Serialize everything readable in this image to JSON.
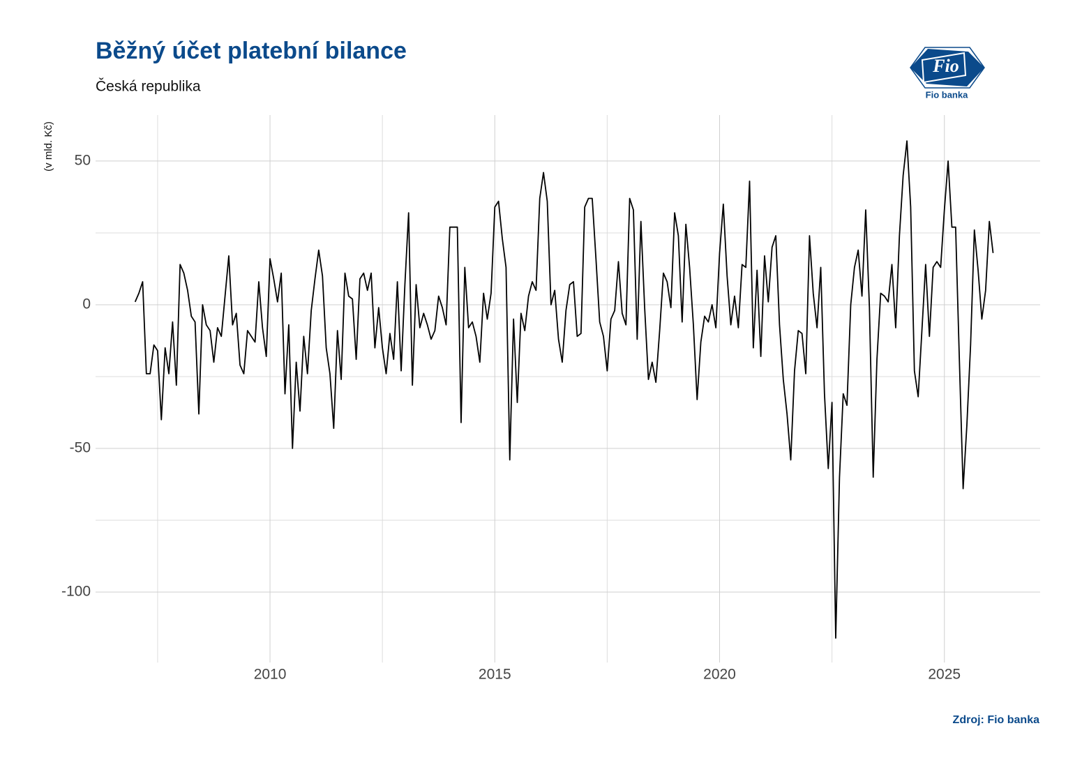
{
  "chart_data": {
    "type": "line",
    "title": "Běžný účet platební bilance",
    "subtitle": "Česká republika",
    "ylabel": "(v mld. Kč)",
    "source": "Zdroj: Fio banka",
    "logo_text": "Fio",
    "logo_caption": "Fio banka",
    "title_color": "#0b4a8b",
    "grid": true,
    "xlim": [
      2006.12,
      2027.13
    ],
    "ylim": [
      -124.5,
      66
    ],
    "xticks": [
      2010,
      2015,
      2020,
      2025
    ],
    "yticks": [
      -100,
      -50,
      0,
      50
    ],
    "minor_xticks": [
      2007.5,
      2012.5,
      2017.5,
      2022.5
    ],
    "minor_yticks": [
      -75,
      -25,
      25
    ],
    "x": [
      2007,
      2007.083,
      2007.167,
      2007.25,
      2007.333,
      2007.417,
      2007.5,
      2007.583,
      2007.667,
      2007.75,
      2007.833,
      2007.917,
      2008,
      2008.083,
      2008.167,
      2008.25,
      2008.333,
      2008.417,
      2008.5,
      2008.583,
      2008.667,
      2008.75,
      2008.833,
      2008.917,
      2009,
      2009.083,
      2009.167,
      2009.25,
      2009.333,
      2009.417,
      2009.5,
      2009.583,
      2009.667,
      2009.75,
      2009.833,
      2009.917,
      2010,
      2010.083,
      2010.167,
      2010.25,
      2010.333,
      2010.417,
      2010.5,
      2010.583,
      2010.667,
      2010.75,
      2010.833,
      2010.917,
      2011,
      2011.083,
      2011.167,
      2011.25,
      2011.333,
      2011.417,
      2011.5,
      2011.583,
      2011.667,
      2011.75,
      2011.833,
      2011.917,
      2012,
      2012.083,
      2012.167,
      2012.25,
      2012.333,
      2012.417,
      2012.5,
      2012.583,
      2012.667,
      2012.75,
      2012.833,
      2012.917,
      2013,
      2013.083,
      2013.167,
      2013.25,
      2013.333,
      2013.417,
      2013.5,
      2013.583,
      2013.667,
      2013.75,
      2013.833,
      2013.917,
      2014,
      2014.083,
      2014.167,
      2014.25,
      2014.333,
      2014.417,
      2014.5,
      2014.583,
      2014.667,
      2014.75,
      2014.833,
      2014.917,
      2015,
      2015.083,
      2015.167,
      2015.25,
      2015.333,
      2015.417,
      2015.5,
      2015.583,
      2015.667,
      2015.75,
      2015.833,
      2015.917,
      2016,
      2016.083,
      2016.167,
      2016.25,
      2016.333,
      2016.417,
      2016.5,
      2016.583,
      2016.667,
      2016.75,
      2016.833,
      2016.917,
      2017,
      2017.083,
      2017.167,
      2017.25,
      2017.333,
      2017.417,
      2017.5,
      2017.583,
      2017.667,
      2017.75,
      2017.833,
      2017.917,
      2018,
      2018.083,
      2018.167,
      2018.25,
      2018.333,
      2018.417,
      2018.5,
      2018.583,
      2018.667,
      2018.75,
      2018.833,
      2018.917,
      2019,
      2019.083,
      2019.167,
      2019.25,
      2019.333,
      2019.417,
      2019.5,
      2019.583,
      2019.667,
      2019.75,
      2019.833,
      2019.917,
      2020,
      2020.083,
      2020.167,
      2020.25,
      2020.333,
      2020.417,
      2020.5,
      2020.583,
      2020.667,
      2020.75,
      2020.833,
      2020.917,
      2021,
      2021.083,
      2021.167,
      2021.25,
      2021.333,
      2021.417,
      2021.5,
      2021.583,
      2021.667,
      2021.75,
      2021.833,
      2021.917,
      2022,
      2022.083,
      2022.167,
      2022.25,
      2022.333,
      2022.417,
      2022.5,
      2022.583,
      2022.667,
      2022.75,
      2022.833,
      2022.917,
      2023,
      2023.083,
      2023.167,
      2023.25,
      2023.333,
      2023.417,
      2023.5,
      2023.583,
      2023.667,
      2023.75,
      2023.833,
      2023.917,
      2024,
      2024.083,
      2024.167,
      2024.25,
      2024.333,
      2024.417,
      2024.5,
      2024.583,
      2024.667,
      2024.75,
      2024.833,
      2024.917,
      2025,
      2025.083,
      2025.167,
      2025.25,
      2025.333,
      2025.417,
      2025.5,
      2025.583,
      2025.667,
      2025.75,
      2025.833,
      2025.917,
      2026,
      2026.083
    ],
    "series": [
      {
        "color": "#000000",
        "values": [
          1,
          4,
          8,
          -24,
          -24,
          -14,
          -16,
          -40,
          -15,
          -24,
          -6,
          -28,
          14,
          11,
          5,
          -4,
          -6,
          -38,
          0,
          -7,
          -9,
          -20,
          -8,
          -11,
          3,
          17,
          -7,
          -3,
          -21,
          -24,
          -9,
          -11,
          -13,
          8,
          -8,
          -18,
          16,
          9,
          1,
          11,
          -31,
          -7,
          -50,
          -20,
          -37,
          -11,
          -24,
          -2,
          9,
          19,
          10,
          -15,
          -24,
          -43,
          -9,
          -26,
          11,
          3,
          2,
          -19,
          9,
          11,
          5,
          11,
          -15,
          -1,
          -15,
          -24,
          -10,
          -19,
          8,
          -23,
          7,
          32,
          -28,
          7,
          -8,
          -3,
          -7,
          -12,
          -9,
          3,
          -1,
          -7,
          27,
          27,
          27,
          -41,
          13,
          -8,
          -6,
          -11,
          -20,
          4,
          -5,
          4,
          34,
          36,
          23,
          13,
          -54,
          -5,
          -34,
          -3,
          -9,
          3,
          8,
          5,
          37,
          46,
          36,
          0,
          5,
          -12,
          -20,
          -2,
          7,
          8,
          -11,
          -10,
          34,
          37,
          37,
          16,
          -6,
          -11,
          -23,
          -5,
          -2,
          15,
          -3,
          -7,
          37,
          33,
          -12,
          29,
          -1,
          -26,
          -20,
          -27,
          -9,
          11,
          8,
          -1,
          32,
          24,
          -6,
          28,
          13,
          -7,
          -33,
          -13,
          -4,
          -6,
          0,
          -8,
          18,
          35,
          10,
          -7,
          3,
          -8,
          14,
          13,
          43,
          -15,
          12,
          -18,
          17,
          1,
          20,
          24,
          -7,
          -26,
          -38,
          -54,
          -23,
          -9,
          -10,
          -24,
          24,
          4,
          -8,
          13,
          -31,
          -57,
          -34,
          -116,
          -60,
          -31,
          -35,
          0,
          13,
          19,
          3,
          33,
          -1,
          -60,
          -19,
          4,
          3,
          1,
          14,
          -8,
          24,
          45,
          57,
          34,
          -23,
          -32,
          -9,
          14,
          -11,
          13,
          15,
          13,
          33,
          50,
          27,
          27,
          -19,
          -64,
          -42,
          -14,
          26,
          12,
          -5,
          5,
          29,
          18
        ]
      }
    ]
  }
}
